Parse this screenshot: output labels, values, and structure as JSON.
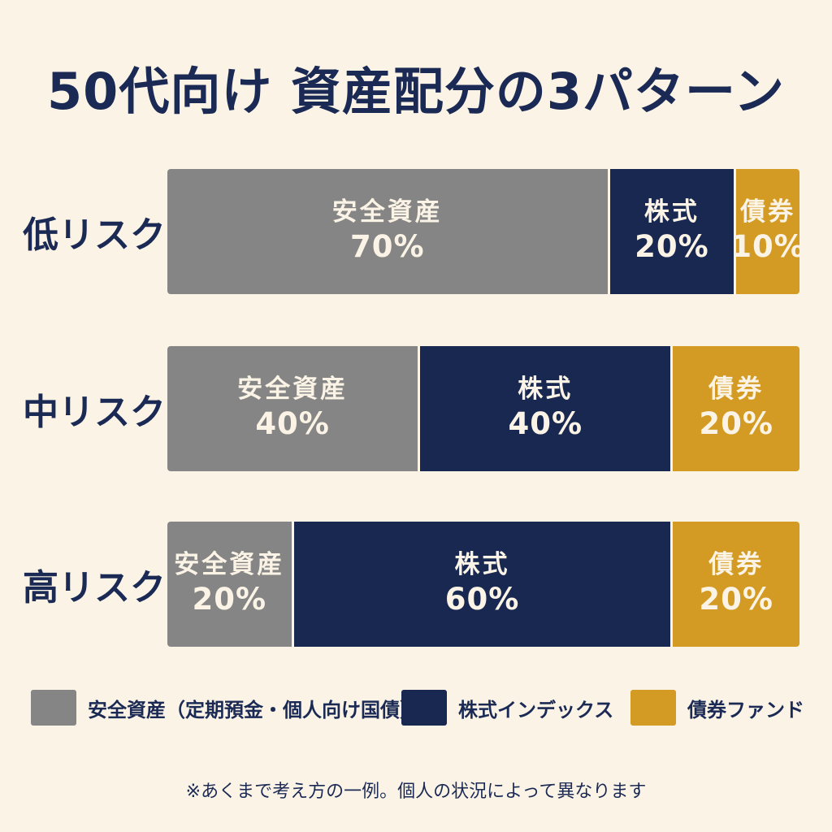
{
  "title": "50代向け 資産配分の3パターン",
  "colors": {
    "background": "#fbf4e6",
    "safe_assets": "#858585",
    "stocks": "#182850",
    "bonds": "#d39b24",
    "text_dark": "#1b2a55"
  },
  "chart_data": {
    "type": "bar",
    "orientation": "horizontal-stacked-100",
    "title": "50代向け 資産配分の3パターン",
    "categories": [
      "低リスク",
      "中リスク",
      "高リスク"
    ],
    "series": [
      {
        "name": "安全資産",
        "color": "#858585",
        "values": [
          70,
          40,
          20
        ],
        "value_labels": [
          "70%",
          "40%",
          "20%"
        ]
      },
      {
        "name": "株式",
        "color": "#182850",
        "values": [
          20,
          40,
          60
        ],
        "value_labels": [
          "20%",
          "40%",
          "60%"
        ]
      },
      {
        "name": "債券",
        "color": "#d39b24",
        "values": [
          10,
          20,
          20
        ],
        "value_labels": [
          "10%",
          "20%",
          "20%"
        ]
      }
    ],
    "xlim": [
      0,
      100
    ],
    "legend": [
      {
        "label": "安全資産（定期預金・個人向け国債）",
        "color": "#858585"
      },
      {
        "label": "株式インデックス",
        "color": "#182850"
      },
      {
        "label": "債券ファンド",
        "color": "#d39b24"
      }
    ],
    "legend_position": "bottom",
    "grid": false
  },
  "note": "※あくまで考え方の一例。個人の状況によって異なります"
}
